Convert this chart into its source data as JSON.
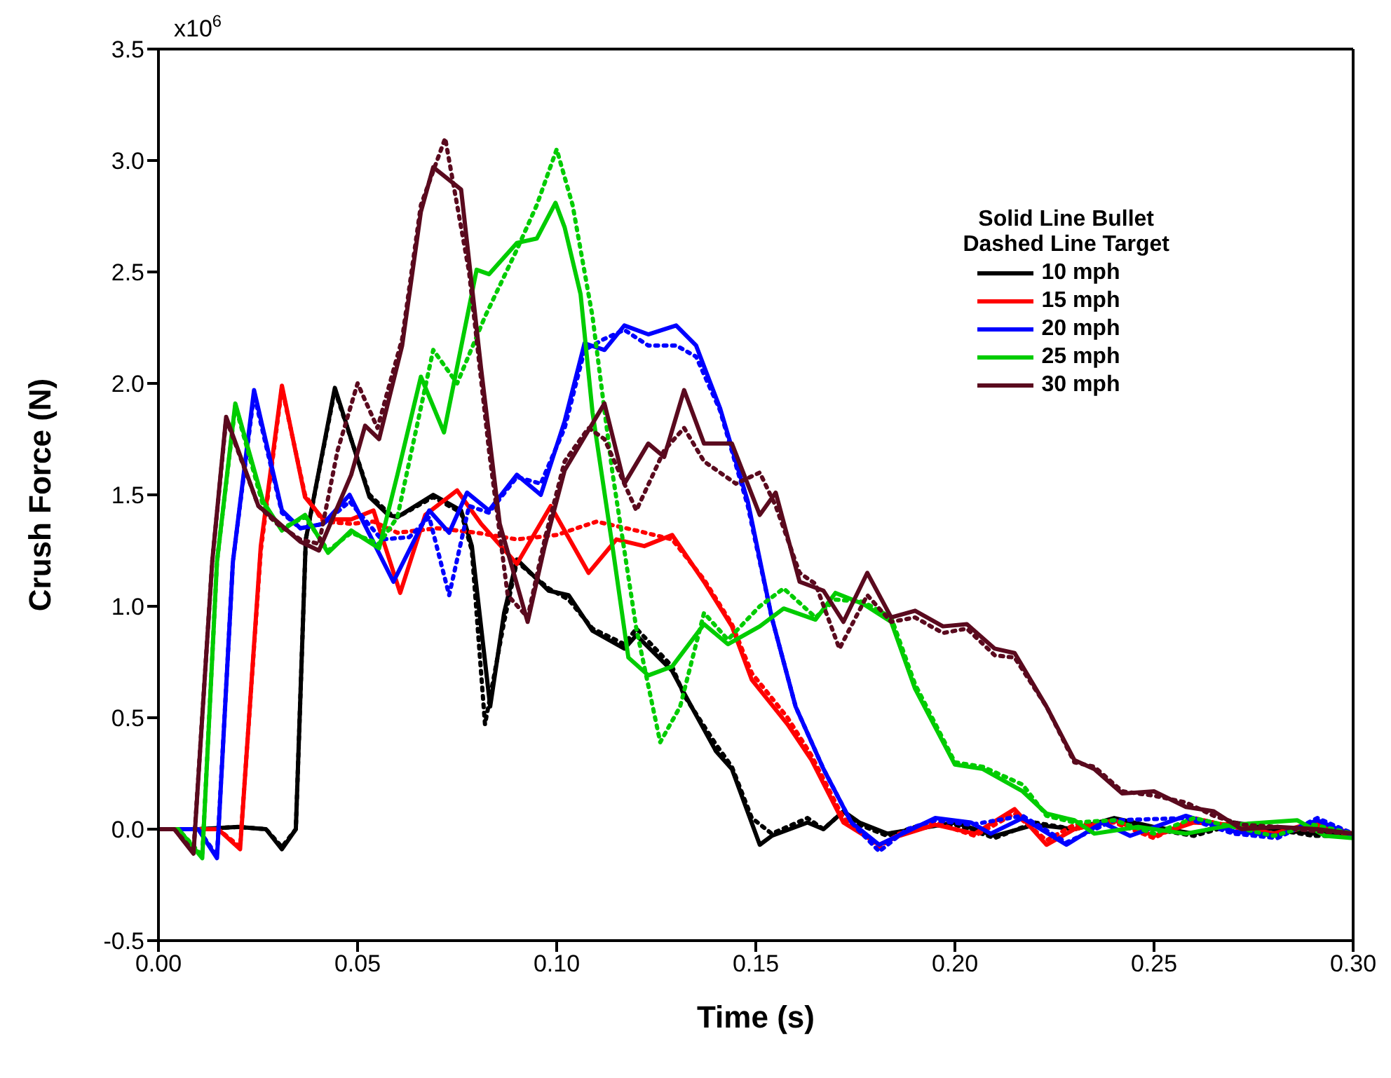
{
  "chart_data": {
    "type": "line",
    "xlabel": "Time (s)",
    "ylabel": "Crush Force (N)",
    "legend_title": "Solid Line Bullet\nDashed Line Target",
    "legend": "top right",
    "grid": false,
    "marker": "none",
    "xlim": [
      0,
      0.3
    ],
    "xticks": [
      {
        "value": 0,
        "label": "0.00"
      },
      {
        "value": 0.05,
        "label": "0.05"
      },
      {
        "value": 0.1,
        "label": "0.10"
      },
      {
        "value": 0.15,
        "label": "0.15"
      },
      {
        "value": 0.2,
        "label": "0.20"
      },
      {
        "value": 0.25,
        "label": "0.25"
      },
      {
        "value": 0.3,
        "label": "0.30"
      }
    ],
    "ylim": [
      -0.5,
      3.5
    ],
    "yticks": [
      -0.5,
      {
        "value": 0,
        "label": "0.0"
      },
      0.5,
      {
        "value": 1,
        "label": "1.0"
      },
      1.5,
      {
        "value": 2,
        "label": "2.0"
      },
      2.5,
      {
        "value": 3,
        "label": "3.0"
      },
      3.5
    ],
    "annotations": [
      "x10$^{6}$"
    ],
    "series": [
      {
        "name": "10 mph",
        "color": "#000000",
        "line_style": "solid",
        "x": [
          0,
          0.01,
          0.02,
          0.027,
          0.031,
          0.0345,
          0.037,
          0.0443,
          0.053,
          0.0577,
          0.06,
          0.069,
          0.076,
          0.0787,
          0.0833,
          0.0868,
          0.09,
          0.098,
          0.103,
          0.109,
          0.117,
          0.12,
          0.129,
          0.132,
          0.14,
          0.144,
          0.151,
          0.154,
          0.163,
          0.167,
          0.172,
          0.176,
          0.183,
          0.19,
          0.2,
          0.21,
          0.22,
          0.23,
          0.24,
          0.25,
          0.26,
          0.27,
          0.28,
          0.29,
          0.3
        ],
        "values": [
          0,
          0,
          0.01,
          0,
          -0.09,
          0,
          1.3,
          1.98,
          1.49,
          1.41,
          1.4,
          1.5,
          1.43,
          1.27,
          0.55,
          0.97,
          1.21,
          1.07,
          1.05,
          0.89,
          0.81,
          0.87,
          0.71,
          0.61,
          0.35,
          0.27,
          -0.07,
          -0.03,
          0.03,
          0,
          0.08,
          0.03,
          -0.02,
          0,
          0.03,
          -0.03,
          0.02,
          0,
          0.05,
          0.01,
          -0.02,
          0.03,
          0,
          -0.02,
          -0.02
        ]
      },
      {
        "color": "#000000",
        "line_style": "dotted",
        "x": [
          0,
          0.01,
          0.02,
          0.027,
          0.031,
          0.0345,
          0.037,
          0.0443,
          0.053,
          0.0577,
          0.06,
          0.069,
          0.076,
          0.0787,
          0.082,
          0.0868,
          0.09,
          0.098,
          0.103,
          0.109,
          0.117,
          0.12,
          0.129,
          0.132,
          0.14,
          0.144,
          0.149,
          0.154,
          0.163,
          0.167,
          0.172,
          0.176,
          0.183,
          0.19,
          0.2,
          0.21,
          0.22,
          0.23,
          0.24,
          0.25,
          0.26,
          0.27,
          0.28,
          0.29,
          0.3
        ],
        "values": [
          0,
          0,
          0.01,
          0,
          -0.08,
          0,
          1.3,
          1.97,
          1.5,
          1.42,
          1.4,
          1.49,
          1.42,
          1.25,
          0.47,
          0.93,
          1.2,
          1.08,
          1.03,
          0.9,
          0.83,
          0.9,
          0.73,
          0.6,
          0.38,
          0.28,
          0.05,
          -0.02,
          0.05,
          0,
          0.08,
          0.02,
          -0.03,
          0.01,
          0.02,
          -0.04,
          0.03,
          0,
          0.04,
          0,
          -0.03,
          0.02,
          0,
          -0.03,
          -0.03
        ]
      },
      {
        "name": "15 mph",
        "color": "#ff0000",
        "line_style": "solid",
        "x": [
          0,
          0.015,
          0.0205,
          0.0257,
          0.031,
          0.0368,
          0.0414,
          0.0484,
          0.054,
          0.0607,
          0.067,
          0.075,
          0.081,
          0.09,
          0.0985,
          0.108,
          0.115,
          0.122,
          0.129,
          0.137,
          0.144,
          0.149,
          0.158,
          0.164,
          0.172,
          0.181,
          0.186,
          0.195,
          0.205,
          0.215,
          0.223,
          0.23,
          0.24,
          0.25,
          0.26,
          0.27,
          0.28,
          0.29,
          0.3
        ],
        "values": [
          0,
          0,
          -0.09,
          1.27,
          1.99,
          1.49,
          1.39,
          1.39,
          1.43,
          1.06,
          1.41,
          1.52,
          1.37,
          1.19,
          1.45,
          1.15,
          1.3,
          1.27,
          1.32,
          1.11,
          0.91,
          0.67,
          0.47,
          0.31,
          0.03,
          -0.07,
          -0.03,
          0.02,
          -0.02,
          0.09,
          -0.07,
          0,
          0.04,
          -0.03,
          0.03,
          0.02,
          -0.02,
          0.03,
          -0.02
        ]
      },
      {
        "color": "#ff0000",
        "line_style": "dotted",
        "x": [
          0,
          0.015,
          0.0205,
          0.0257,
          0.031,
          0.0368,
          0.0414,
          0.0484,
          0.054,
          0.06,
          0.07,
          0.08,
          0.09,
          0.1,
          0.11,
          0.12,
          0.129,
          0.137,
          0.144,
          0.149,
          0.158,
          0.164,
          0.172,
          0.181,
          0.186,
          0.195,
          0.205,
          0.215,
          0.223,
          0.23,
          0.24,
          0.25,
          0.26,
          0.27,
          0.28,
          0.29,
          0.3
        ],
        "values": [
          0,
          0,
          -0.08,
          1.25,
          1.98,
          1.5,
          1.38,
          1.37,
          1.38,
          1.33,
          1.35,
          1.33,
          1.3,
          1.32,
          1.38,
          1.34,
          1.3,
          1.12,
          0.92,
          0.7,
          0.5,
          0.33,
          0.05,
          -0.08,
          -0.02,
          0.03,
          -0.03,
          0.07,
          -0.05,
          0.02,
          0.03,
          -0.04,
          0.05,
          0.01,
          -0.03,
          0.02,
          -0.03
        ]
      },
      {
        "name": "20 mph",
        "color": "#0000ff",
        "line_style": "solid",
        "x": [
          0,
          0.01,
          0.0147,
          0.0187,
          0.024,
          0.031,
          0.0356,
          0.0414,
          0.048,
          0.059,
          0.068,
          0.073,
          0.0775,
          0.083,
          0.09,
          0.096,
          0.102,
          0.107,
          0.112,
          0.117,
          0.123,
          0.13,
          0.135,
          0.141,
          0.148,
          0.154,
          0.16,
          0.167,
          0.174,
          0.181,
          0.188,
          0.195,
          0.204,
          0.209,
          0.217,
          0.228,
          0.237,
          0.244,
          0.258,
          0.27,
          0.281,
          0.291,
          0.3
        ],
        "values": [
          0,
          0,
          -0.13,
          1.2,
          1.97,
          1.43,
          1.35,
          1.37,
          1.5,
          1.11,
          1.43,
          1.33,
          1.51,
          1.43,
          1.59,
          1.5,
          1.83,
          2.18,
          2.15,
          2.26,
          2.22,
          2.26,
          2.17,
          1.89,
          1.47,
          0.95,
          0.55,
          0.27,
          0.03,
          -0.07,
          -0.01,
          0.05,
          0.03,
          -0.02,
          0.05,
          -0.07,
          0.03,
          -0.03,
          0.06,
          -0.01,
          -0.03,
          0.04,
          -0.03
        ]
      },
      {
        "color": "#0000ff",
        "line_style": "dotted",
        "x": [
          0,
          0.01,
          0.0147,
          0.0187,
          0.024,
          0.031,
          0.0356,
          0.0414,
          0.048,
          0.056,
          0.063,
          0.068,
          0.073,
          0.078,
          0.083,
          0.09,
          0.096,
          0.102,
          0.107,
          0.112,
          0.117,
          0.123,
          0.13,
          0.135,
          0.141,
          0.148,
          0.154,
          0.16,
          0.167,
          0.174,
          0.181,
          0.188,
          0.195,
          0.204,
          0.217,
          0.228,
          0.24,
          0.258,
          0.27,
          0.281,
          0.291,
          0.3
        ],
        "values": [
          0,
          0,
          -0.12,
          1.2,
          1.95,
          1.42,
          1.35,
          1.37,
          1.47,
          1.3,
          1.31,
          1.4,
          1.05,
          1.45,
          1.42,
          1.58,
          1.55,
          1.8,
          2.15,
          2.2,
          2.24,
          2.17,
          2.17,
          2.12,
          1.88,
          1.45,
          0.95,
          0.55,
          0.27,
          0.03,
          -0.1,
          0,
          0.04,
          0.02,
          0.06,
          -0.06,
          0.04,
          0.05,
          -0.02,
          -0.04,
          0.05,
          -0.02
        ]
      },
      {
        "name": "25 mph",
        "color": "#00cc00",
        "line_style": "solid",
        "x": [
          0,
          0.005,
          0.011,
          0.0147,
          0.0193,
          0.0263,
          0.031,
          0.0368,
          0.0426,
          0.0484,
          0.0554,
          0.06,
          0.0659,
          0.0717,
          0.0799,
          0.083,
          0.09,
          0.095,
          0.0997,
          0.102,
          0.106,
          0.109,
          0.114,
          0.118,
          0.123,
          0.129,
          0.137,
          0.143,
          0.151,
          0.157,
          0.165,
          0.17,
          0.177,
          0.184,
          0.19,
          0.2,
          0.207,
          0.217,
          0.223,
          0.23,
          0.235,
          0.246,
          0.258,
          0.27,
          0.286,
          0.293,
          0.3
        ],
        "values": [
          0,
          0,
          -0.13,
          1.2,
          1.91,
          1.47,
          1.34,
          1.41,
          1.24,
          1.34,
          1.26,
          1.59,
          2.03,
          1.78,
          2.51,
          2.49,
          2.63,
          2.65,
          2.81,
          2.7,
          2.4,
          1.87,
          1.27,
          0.77,
          0.69,
          0.73,
          0.92,
          0.83,
          0.91,
          0.99,
          0.94,
          1.06,
          1.01,
          0.93,
          0.63,
          0.29,
          0.27,
          0.17,
          0.07,
          0.04,
          -0.02,
          0.01,
          -0.02,
          0.02,
          0.04,
          -0.03,
          -0.04
        ]
      },
      {
        "color": "#00cc00",
        "line_style": "dotted",
        "x": [
          0,
          0.005,
          0.011,
          0.0147,
          0.0193,
          0.0263,
          0.031,
          0.0368,
          0.0426,
          0.0484,
          0.0554,
          0.06,
          0.069,
          0.075,
          0.082,
          0.09,
          0.095,
          0.1,
          0.104,
          0.109,
          0.114,
          0.12,
          0.126,
          0.131,
          0.137,
          0.143,
          0.151,
          0.157,
          0.165,
          0.17,
          0.177,
          0.184,
          0.19,
          0.2,
          0.207,
          0.217,
          0.223,
          0.23,
          0.24,
          0.25,
          0.26,
          0.27,
          0.28,
          0.29,
          0.3
        ],
        "values": [
          0,
          0,
          -0.12,
          1.2,
          1.9,
          1.45,
          1.35,
          1.4,
          1.25,
          1.33,
          1.28,
          1.4,
          2.15,
          2.0,
          2.3,
          2.6,
          2.8,
          3.05,
          2.8,
          2.3,
          1.6,
          0.9,
          0.39,
          0.55,
          0.97,
          0.85,
          1.0,
          1.08,
          0.95,
          1.03,
          1.02,
          0.95,
          0.65,
          0.3,
          0.28,
          0.2,
          0.06,
          0.03,
          0.04,
          -0.02,
          0.05,
          0.01,
          -0.03,
          0.02,
          -0.02
        ]
      },
      {
        "name": "30 mph",
        "color": "#5a0a1e",
        "line_style": "solid",
        "x": [
          0,
          0.004,
          0.0088,
          0.0135,
          0.017,
          0.0251,
          0.0298,
          0.0356,
          0.0403,
          0.0484,
          0.0519,
          0.0554,
          0.0612,
          0.0659,
          0.069,
          0.076,
          0.081,
          0.0857,
          0.0927,
          0.097,
          0.102,
          0.108,
          0.112,
          0.117,
          0.123,
          0.127,
          0.132,
          0.137,
          0.144,
          0.151,
          0.155,
          0.161,
          0.167,
          0.172,
          0.178,
          0.184,
          0.19,
          0.197,
          0.203,
          0.21,
          0.215,
          0.223,
          0.23,
          0.235,
          0.242,
          0.25,
          0.258,
          0.265,
          0.272,
          0.281,
          0.291,
          0.3
        ],
        "values": [
          0,
          0,
          -0.11,
          1.2,
          1.85,
          1.45,
          1.38,
          1.29,
          1.25,
          1.59,
          1.81,
          1.75,
          2.17,
          2.77,
          2.97,
          2.87,
          2.07,
          1.37,
          0.93,
          1.27,
          1.61,
          1.79,
          1.91,
          1.55,
          1.73,
          1.67,
          1.97,
          1.73,
          1.73,
          1.41,
          1.51,
          1.11,
          1.07,
          0.93,
          1.15,
          0.95,
          0.98,
          0.91,
          0.92,
          0.81,
          0.79,
          0.55,
          0.31,
          0.27,
          0.16,
          0.17,
          0.1,
          0.08,
          0,
          0.01,
          0,
          -0.02
        ]
      },
      {
        "color": "#5a0a1e",
        "line_style": "dotted",
        "x": [
          0,
          0.004,
          0.0088,
          0.0135,
          0.017,
          0.0251,
          0.0298,
          0.0356,
          0.0403,
          0.045,
          0.05,
          0.055,
          0.0612,
          0.0659,
          0.072,
          0.078,
          0.083,
          0.0877,
          0.0927,
          0.097,
          0.102,
          0.108,
          0.112,
          0.12,
          0.127,
          0.132,
          0.137,
          0.145,
          0.151,
          0.155,
          0.161,
          0.165,
          0.171,
          0.178,
          0.184,
          0.19,
          0.197,
          0.203,
          0.21,
          0.215,
          0.223,
          0.23,
          0.235,
          0.242,
          0.25,
          0.258,
          0.265,
          0.272,
          0.281,
          0.291,
          0.3
        ],
        "values": [
          0,
          0,
          -0.1,
          1.2,
          1.84,
          1.45,
          1.37,
          1.3,
          1.28,
          1.7,
          2.0,
          1.8,
          2.2,
          2.8,
          3.1,
          2.5,
          1.7,
          1.05,
          0.95,
          1.3,
          1.65,
          1.8,
          1.75,
          1.43,
          1.7,
          1.8,
          1.65,
          1.55,
          1.6,
          1.45,
          1.15,
          1.1,
          0.81,
          1.05,
          0.93,
          0.95,
          0.88,
          0.9,
          0.78,
          0.77,
          0.55,
          0.3,
          0.28,
          0.17,
          0.15,
          0.12,
          0.06,
          0.02,
          0.01,
          -0.01,
          -0.02
        ]
      }
    ]
  }
}
